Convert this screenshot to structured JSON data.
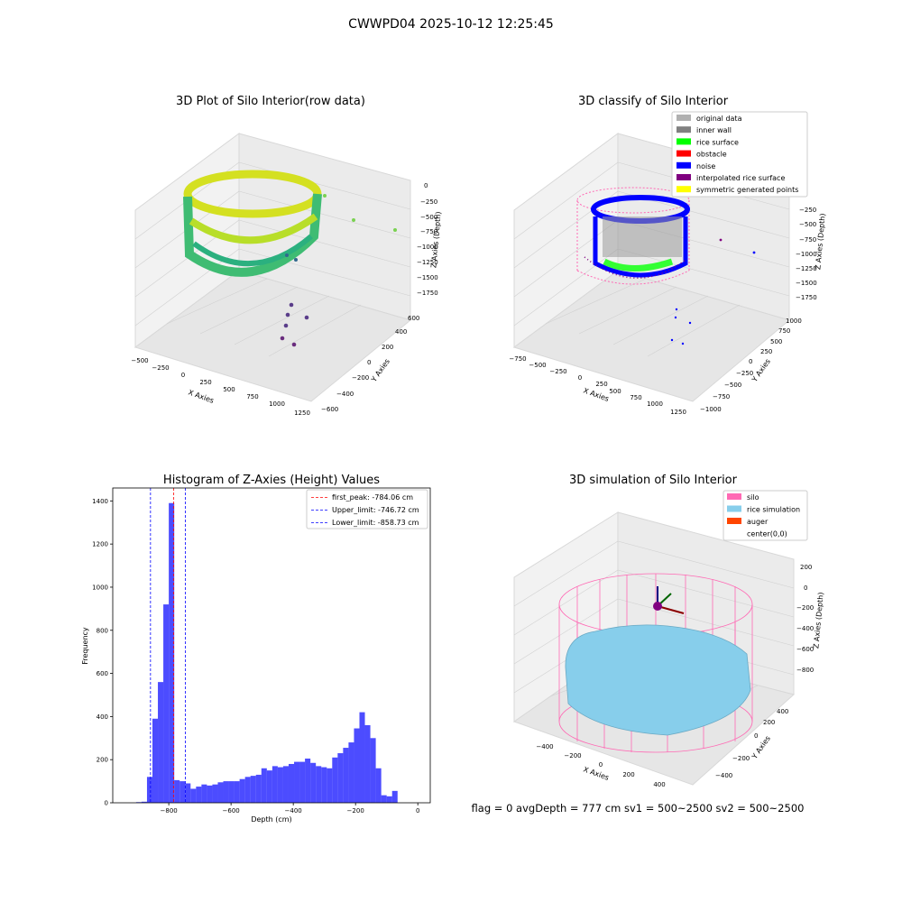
{
  "figure": {
    "suptitle": "CWWPD04 2025-10-12 12:25:45"
  },
  "footer": {
    "text": "flag = 0     avgDepth = 777 cm  sv1 = 500~2500  sv2 = 500~2500"
  },
  "chart_data": [
    {
      "type": "scatter",
      "subtype": "3d",
      "title": "3D Plot of Silo Interior(row data)",
      "xlabel": "X Axies",
      "ylabel": "Y Axies",
      "zlabel": "Z Axies (Depth)",
      "x_ticks": [
        "−500",
        "−250",
        "0",
        "250",
        "500",
        "750",
        "1000",
        "1250"
      ],
      "y_ticks": [
        "−600",
        "−400",
        "−200",
        "0",
        "200",
        "400",
        "600"
      ],
      "z_ticks": [
        "0",
        "−250",
        "−500",
        "−750",
        "−1000",
        "−1250",
        "−1500",
        "−1750"
      ],
      "colormap": "viridis (color by depth)",
      "grid": true
    },
    {
      "type": "scatter",
      "subtype": "3d",
      "title": "3D classify of Silo Interior",
      "xlabel": "X Axies",
      "ylabel": "Y Axies",
      "zlabel": "Z Axies (Depth)",
      "x_ticks": [
        "−750",
        "−500",
        "−250",
        "0",
        "250",
        "500",
        "750",
        "1000",
        "1250"
      ],
      "y_ticks": [
        "−1000",
        "−750",
        "−500",
        "−250",
        "0",
        "250",
        "500",
        "750",
        "1000"
      ],
      "z_ticks": [
        "0",
        "−250",
        "−500",
        "−750",
        "−1000",
        "−1250",
        "−1500",
        "−1750"
      ],
      "legend": [
        {
          "label": "original data",
          "color": "#b0b0b0"
        },
        {
          "label": "inner wall",
          "color": "#808080"
        },
        {
          "label": "rice surface",
          "color": "#00ff00"
        },
        {
          "label": "obstacle",
          "color": "#ff0000"
        },
        {
          "label": "noise",
          "color": "#0000ff"
        },
        {
          "label": "interpolated rice surface",
          "color": "#800080"
        },
        {
          "label": "symmetric generated points",
          "color": "#ffff00"
        }
      ],
      "legend_position": "upper right",
      "grid": true
    },
    {
      "type": "bar",
      "subtype": "histogram",
      "title": "Histogram of Z-Axies (Height) Values",
      "xlabel": "Depth (cm)",
      "ylabel": "Frequency",
      "xlim": [
        -980,
        40
      ],
      "ylim": [
        0,
        1460
      ],
      "x_ticks": [
        -800,
        -600,
        -400,
        -200,
        0
      ],
      "x_tick_labels": [
        "−800",
        "−600",
        "−400",
        "−200",
        "0"
      ],
      "y_ticks": [
        0,
        200,
        400,
        600,
        800,
        1000,
        1200,
        1400
      ],
      "bar_color": "#0000ff",
      "bin_width": 17.5,
      "bin_starts": [
        -905,
        -887.5,
        -870,
        -852.5,
        -835,
        -817.5,
        -800,
        -782.5,
        -765,
        -747.5,
        -730,
        -712.5,
        -695,
        -677.5,
        -660,
        -642.5,
        -625,
        -607.5,
        -590,
        -572.5,
        -555,
        -537.5,
        -520,
        -502.5,
        -485,
        -467.5,
        -450,
        -432.5,
        -415,
        -397.5,
        -380,
        -362.5,
        -345,
        -327.5,
        -310,
        -292.5,
        -275,
        -257.5,
        -240,
        -222.5,
        -205,
        -187.5,
        -170,
        -152.5,
        -135,
        -117.5,
        -100,
        -82.5,
        -65,
        -47.5,
        -30,
        -12.5
      ],
      "values": [
        3,
        5,
        120,
        390,
        560,
        920,
        1390,
        105,
        100,
        90,
        65,
        75,
        85,
        80,
        85,
        95,
        100,
        100,
        100,
        110,
        120,
        125,
        130,
        160,
        150,
        170,
        165,
        170,
        180,
        190,
        190,
        205,
        185,
        170,
        165,
        160,
        210,
        230,
        255,
        280,
        345,
        420,
        360,
        300,
        160,
        35,
        30,
        55,
        0,
        0,
        0,
        0
      ],
      "lines": [
        {
          "label": "first_peak: -784.06 cm",
          "x": -784.06,
          "color": "#ff0000"
        },
        {
          "label": "Upper_limit: -746.72 cm",
          "x": -746.72,
          "color": "#0000ff"
        },
        {
          "label": "Lower_limit: -858.73 cm",
          "x": -858.73,
          "color": "#0000ff"
        }
      ],
      "legend_position": "upper right",
      "grid": false
    },
    {
      "type": "surface",
      "subtype": "3d",
      "title": "3D simulation of Silo Interior",
      "xlabel": "X Axies",
      "ylabel": "Y Axies",
      "zlabel": "Z Axies (Depth)",
      "x_ticks": [
        "−400",
        "−200",
        "0",
        "200",
        "400"
      ],
      "y_ticks": [
        "−400",
        "−200",
        "0",
        "200",
        "400"
      ],
      "z_ticks": [
        "200",
        "0",
        "−200",
        "−400",
        "−600",
        "−800"
      ],
      "legend": [
        {
          "label": "silo",
          "color": "#ff69b4"
        },
        {
          "label": "rice simulation",
          "color": "#87ceeb"
        },
        {
          "label": "auger",
          "color": "#ff4500"
        },
        {
          "label": "center(0,0)",
          "color": ""
        }
      ],
      "legend_position": "upper right",
      "grid": true
    }
  ]
}
